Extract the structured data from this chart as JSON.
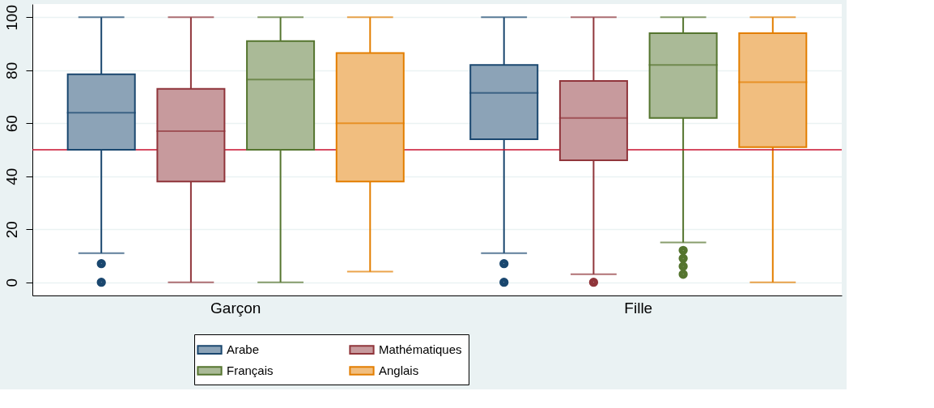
{
  "chart_data": {
    "type": "box",
    "categories": [
      "Garçon",
      "Fille"
    ],
    "ylim": [
      -5,
      105
    ],
    "yticks": [
      0,
      20,
      40,
      60,
      80,
      100
    ],
    "grid": "y",
    "legend": "bottom",
    "ref_lines": [
      {
        "axis": "y",
        "value": 50,
        "color": "#c8102e"
      }
    ],
    "series": [
      {
        "name": "Arabe",
        "color": "#1a476f",
        "boxes": [
          {
            "low": 11,
            "q1": 50,
            "median": 64,
            "q3": 78.5,
            "high": 100,
            "outliers": [
              7,
              0
            ]
          },
          {
            "low": 11,
            "q1": 54,
            "median": 71.5,
            "q3": 82,
            "high": 100,
            "outliers": [
              7,
              0
            ]
          }
        ]
      },
      {
        "name": "Mathématiques",
        "color": "#90353b",
        "boxes": [
          {
            "low": 0,
            "q1": 38,
            "median": 57,
            "q3": 73,
            "high": 100
          },
          {
            "low": 3,
            "q1": 46,
            "median": 62,
            "q3": 76,
            "high": 100,
            "outliers": [
              0
            ]
          }
        ]
      },
      {
        "name": "Français",
        "color": "#55752f",
        "boxes": [
          {
            "low": 0,
            "q1": 50,
            "median": 76.5,
            "q3": 91,
            "high": 100
          },
          {
            "low": 15,
            "q1": 62,
            "median": 82,
            "q3": 94,
            "high": 100,
            "outliers": [
              12,
              9,
              6,
              3
            ]
          }
        ]
      },
      {
        "name": "Anglais",
        "color": "#e37e00",
        "boxes": [
          {
            "low": 4,
            "q1": 38,
            "median": 60,
            "q3": 86.5,
            "high": 100
          },
          {
            "low": 0,
            "q1": 51,
            "median": 75.5,
            "q3": 94,
            "high": 100
          }
        ]
      }
    ]
  }
}
